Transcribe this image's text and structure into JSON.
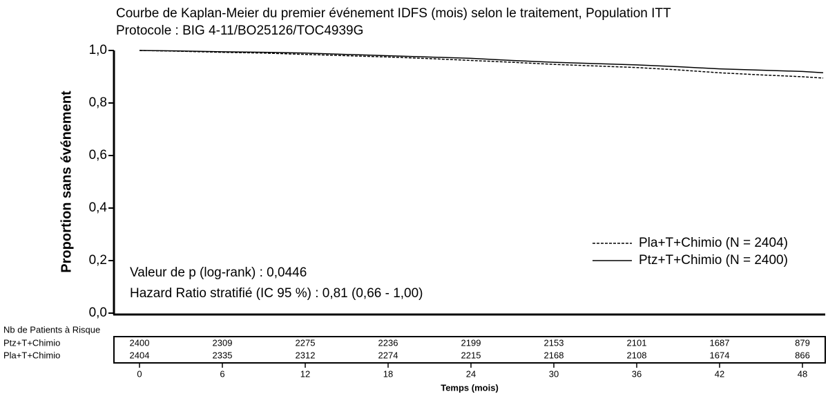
{
  "chart_data": {
    "type": "line",
    "title": "Courbe de Kaplan-Meier du premier événement IDFS (mois) selon le traitement, Population ITT",
    "subtitle": "Protocole : BIG 4-11/BO25126/TOC4939G",
    "y_label": "Proportion sans événement",
    "x_label": "Temps (mois)",
    "x": [
      0,
      3,
      6,
      9,
      12,
      15,
      18,
      21,
      24,
      27,
      30,
      33,
      36,
      39,
      42,
      45,
      48,
      49.5
    ],
    "series": [
      {
        "name": "Pla+T+Chimio (N = 2404)",
        "color": "#000000",
        "dash": true,
        "values": [
          1.0,
          0.997,
          0.993,
          0.99,
          0.985,
          0.98,
          0.975,
          0.969,
          0.962,
          0.955,
          0.947,
          0.941,
          0.935,
          0.926,
          0.915,
          0.907,
          0.9,
          0.895
        ]
      },
      {
        "name": "Ptz+T+Chimio (N = 2400)",
        "color": "#000000",
        "dash": false,
        "values": [
          1.0,
          0.998,
          0.995,
          0.993,
          0.99,
          0.985,
          0.98,
          0.975,
          0.97,
          0.962,
          0.955,
          0.95,
          0.945,
          0.938,
          0.93,
          0.925,
          0.92,
          0.915
        ]
      }
    ],
    "xlim": [
      -1.85,
      49.65
    ],
    "ylim": [
      0,
      1
    ],
    "xticks": [
      0,
      6,
      12,
      18,
      24,
      30,
      36,
      42,
      48
    ],
    "yticks": [
      {
        "value": 0,
        "label": "0,0"
      },
      {
        "value": 0.2,
        "label": "0,2"
      },
      {
        "value": 0.4,
        "label": "0,4"
      },
      {
        "value": 0.6,
        "label": "0,6"
      },
      {
        "value": 0.8,
        "label": "0,8"
      },
      {
        "value": 1,
        "label": "1,0"
      }
    ],
    "annotations": [
      "Valeur de p (log-rank) : 0,0446",
      "Hazard Ratio stratifié (IC 95 %) : 0,81 (0,66 - 1,00)"
    ],
    "risk_table": {
      "title": "Nb de Patients à Risque",
      "rows": [
        {
          "name": "Ptz+T+Chimio",
          "counts": [
            2400,
            2309,
            2275,
            2236,
            2199,
            2153,
            2101,
            1687,
            879
          ]
        },
        {
          "name": "Pla+T+Chimio",
          "counts": [
            2404,
            2335,
            2312,
            2274,
            2215,
            2168,
            2108,
            1674,
            866
          ]
        }
      ]
    }
  }
}
